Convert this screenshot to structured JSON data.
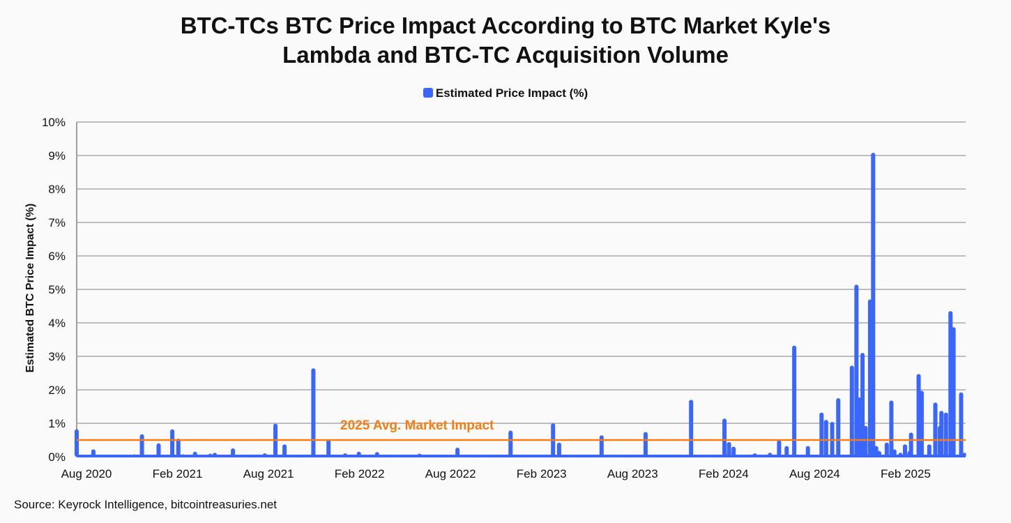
{
  "chart_data": {
    "type": "bar",
    "title_line1": "BTC-TCs BTC Price Impact According to BTC Market Kyle's",
    "title_line2": "Lambda and BTC-TC Acquisition Volume",
    "legend": "Estimated Price Impact (%)",
    "ylabel": "Estimated BTC Price Impact (%)",
    "xlabel": "",
    "x_unit": "months since Aug 2020",
    "xlim": [
      0,
      58.6
    ],
    "ylim": [
      0,
      10
    ],
    "yticks": [
      "0%",
      "1%",
      "2%",
      "3%",
      "4%",
      "5%",
      "6%",
      "7%",
      "8%",
      "9%",
      "10%"
    ],
    "xticks": [
      {
        "label": "Aug 2020",
        "x": 0
      },
      {
        "label": "Feb 2021",
        "x": 6
      },
      {
        "label": "Aug 2021",
        "x": 12
      },
      {
        "label": "Feb 2022",
        "x": 18
      },
      {
        "label": "Aug 2022",
        "x": 24
      },
      {
        "label": "Feb 2023",
        "x": 30
      },
      {
        "label": "Aug 2023",
        "x": 36
      },
      {
        "label": "Feb 2024",
        "x": 42
      },
      {
        "label": "Aug 2024",
        "x": 48
      },
      {
        "label": "Feb 2025",
        "x": 54
      }
    ],
    "grid": true,
    "legend_position": "top-center",
    "series": [
      {
        "name": "Estimated Price Impact (%)",
        "color": "#3a66fb",
        "points": [
          [
            0,
            0.8
          ],
          [
            1.1,
            0.2
          ],
          [
            3.8,
            0.05
          ],
          [
            4.3,
            0.65
          ],
          [
            5.4,
            0.38
          ],
          [
            6.3,
            0.8
          ],
          [
            6.7,
            0.52
          ],
          [
            7.0,
            0.05
          ],
          [
            7.8,
            0.13
          ],
          [
            8.8,
            0.07
          ],
          [
            9.1,
            0.1
          ],
          [
            10.3,
            0.23
          ],
          [
            10.7,
            0.03
          ],
          [
            12.4,
            0.08
          ],
          [
            13.1,
            0.97
          ],
          [
            13.7,
            0.35
          ],
          [
            15.6,
            2.62
          ],
          [
            16.6,
            0.5
          ],
          [
            17.7,
            0.08
          ],
          [
            18.6,
            0.13
          ],
          [
            19.8,
            0.12
          ],
          [
            22.6,
            0.07
          ],
          [
            25.1,
            0.25
          ],
          [
            28.6,
            0.76
          ],
          [
            31.4,
            0.98
          ],
          [
            31.8,
            0.4
          ],
          [
            34.6,
            0.62
          ],
          [
            37.5,
            0.72
          ],
          [
            40.5,
            1.68
          ],
          [
            42.7,
            1.12
          ],
          [
            43.0,
            0.42
          ],
          [
            43.3,
            0.28
          ],
          [
            44.7,
            0.08
          ],
          [
            45.7,
            0.1
          ],
          [
            46.3,
            0.48
          ],
          [
            46.8,
            0.3
          ],
          [
            47.3,
            3.3
          ],
          [
            48.2,
            0.3
          ],
          [
            49.1,
            1.3
          ],
          [
            49.4,
            1.08
          ],
          [
            49.8,
            1.02
          ],
          [
            50.2,
            1.73
          ],
          [
            51.1,
            2.7
          ],
          [
            51.4,
            5.12
          ],
          [
            51.5,
            1.4
          ],
          [
            51.6,
            1.75
          ],
          [
            51.8,
            3.08
          ],
          [
            52.0,
            0.9
          ],
          [
            52.3,
            4.68
          ],
          [
            52.5,
            9.06
          ],
          [
            52.7,
            0.3
          ],
          [
            52.9,
            0.15
          ],
          [
            53.4,
            0.4
          ],
          [
            53.7,
            1.66
          ],
          [
            53.9,
            0.2
          ],
          [
            54.3,
            0.1
          ],
          [
            54.6,
            0.35
          ],
          [
            54.9,
            0.15
          ],
          [
            55.0,
            0.7
          ],
          [
            55.5,
            2.45
          ],
          [
            55.7,
            1.95
          ],
          [
            56.2,
            0.35
          ],
          [
            56.6,
            1.6
          ],
          [
            56.9,
            0.9
          ],
          [
            57.0,
            1.35
          ],
          [
            57.3,
            1.3
          ],
          [
            57.6,
            4.33
          ],
          [
            57.8,
            3.85
          ],
          [
            58.3,
            1.9
          ],
          [
            58.5,
            0.1
          ]
        ]
      }
    ],
    "annotations": [
      {
        "text": "2025 Avg. Market Impact",
        "y": 0.5,
        "color": "#f57e12"
      }
    ]
  },
  "source": "Source: Keyrock Intelligence, bitcointreasuries.net"
}
